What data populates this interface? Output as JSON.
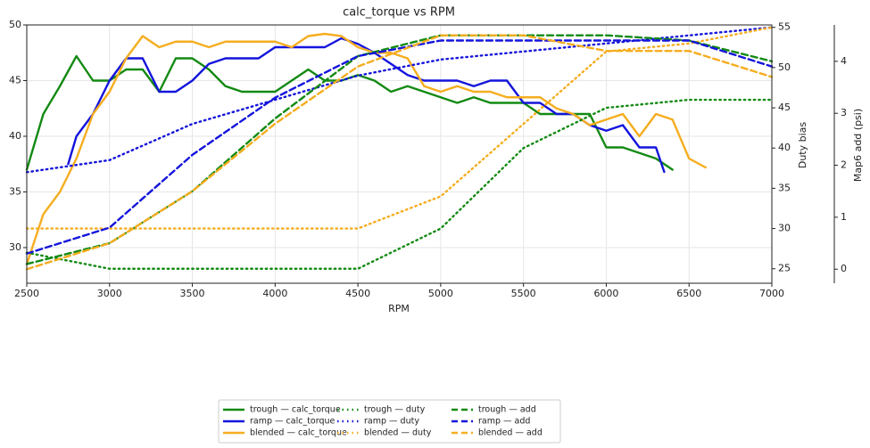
{
  "chart_data": {
    "type": "line",
    "title": "calc_torque vs RPM",
    "xlabel": "RPM",
    "y2label": "Duty bias",
    "y3label": "Map6 add (psi)",
    "xlim": [
      2500,
      7000
    ],
    "xticks": [
      2500,
      3000,
      3500,
      4000,
      4500,
      5000,
      5500,
      6000,
      6500,
      7000
    ],
    "ylim": [
      26.8,
      50
    ],
    "yticks": [
      30,
      35,
      40,
      45,
      50
    ],
    "y2lim": [
      23.2,
      55.3
    ],
    "y2ticks": [
      25,
      30,
      35,
      40,
      45,
      50,
      55
    ],
    "y3lim": [
      -0.27,
      4.7
    ],
    "y3ticks": [
      0,
      1,
      2,
      3,
      4
    ],
    "grid": true,
    "legend": "lower center",
    "series": [
      {
        "name": "trough — calc_torque",
        "color": "#138a13",
        "style": "solid",
        "axis": "y",
        "x": [
          2500,
          2600,
          2700,
          2800,
          2900,
          3000,
          3100,
          3200,
          3300,
          3400,
          3500,
          3600,
          3700,
          3800,
          3900,
          4000,
          4100,
          4200,
          4300,
          4400,
          4500,
          4600,
          4700,
          4800,
          4900,
          5000,
          5100,
          5200,
          5300,
          5400,
          5500,
          5600,
          5700,
          5800,
          5900,
          6000,
          6100,
          6200,
          6300,
          6400
        ],
        "values": [
          37,
          42,
          44.5,
          47.2,
          45,
          45,
          46,
          46,
          44,
          47,
          47,
          46,
          44.5,
          44,
          44,
          44,
          45,
          46,
          45,
          45,
          45.5,
          45,
          44,
          44.5,
          44,
          43.5,
          43,
          43.5,
          43,
          43,
          43,
          42,
          42,
          42,
          42,
          39,
          39,
          38.5,
          38,
          37
        ]
      },
      {
        "name": "ramp — calc_torque",
        "color": "#1414dc",
        "style": "solid",
        "axis": "y",
        "x": [
          2750,
          2800,
          2900,
          3000,
          3100,
          3200,
          3300,
          3400,
          3500,
          3600,
          3700,
          3800,
          3900,
          4000,
          4100,
          4200,
          4300,
          4400,
          4500,
          4600,
          4700,
          4800,
          4900,
          5000,
          5100,
          5200,
          5300,
          5400,
          5500,
          5600,
          5700,
          5800,
          5900,
          6000,
          6100,
          6200,
          6300,
          6350
        ],
        "values": [
          37.5,
          40,
          42,
          45,
          47,
          47,
          44,
          44,
          45,
          46.5,
          47,
          47,
          47,
          48,
          48,
          48,
          48,
          48.8,
          48.3,
          47.5,
          46.5,
          45.5,
          45,
          45,
          45,
          44.5,
          45,
          45,
          43,
          43,
          42,
          42,
          41,
          40.5,
          41,
          39,
          39,
          36.8
        ]
      },
      {
        "name": "blended — calc_torque",
        "color": "#f5ad1f",
        "style": "solid",
        "axis": "y",
        "x": [
          2500,
          2600,
          2700,
          2800,
          2900,
          3000,
          3100,
          3200,
          3300,
          3400,
          3500,
          3600,
          3700,
          3800,
          3900,
          4000,
          4100,
          4200,
          4300,
          4400,
          4500,
          4600,
          4700,
          4800,
          4900,
          5000,
          5100,
          5200,
          5300,
          5400,
          5500,
          5600,
          5700,
          5800,
          5900,
          6000,
          6100,
          6200,
          6300,
          6400,
          6500,
          6600
        ],
        "values": [
          28.5,
          33,
          35,
          38,
          42,
          44,
          47,
          49,
          48,
          48.5,
          48.5,
          48,
          48.5,
          48.5,
          48.5,
          48.5,
          48,
          49,
          49.2,
          49,
          48,
          47.5,
          47.5,
          47,
          44.5,
          44,
          44.5,
          44,
          44,
          43.5,
          43.5,
          43.5,
          42.5,
          42,
          41,
          41.5,
          42,
          40,
          42,
          41.5,
          38,
          37.2
        ]
      },
      {
        "name": "trough — duty",
        "color": "#138a13",
        "style": "dotted",
        "axis": "y2",
        "x": [
          2500,
          2750,
          3000,
          3500,
          4000,
          4500,
          5000,
          5500,
          6000,
          6500,
          7000
        ],
        "values": [
          27,
          26,
          25,
          25,
          25,
          25,
          30,
          40,
          45,
          46,
          46
        ]
      },
      {
        "name": "ramp — duty",
        "color": "#1414dc",
        "style": "dotted",
        "axis": "y2",
        "x": [
          2500,
          3000,
          3500,
          4000,
          4500,
          5000,
          5500,
          6000,
          6500,
          7000
        ],
        "values": [
          37,
          38.5,
          43,
          46,
          49,
          51,
          52,
          53,
          54,
          55
        ]
      },
      {
        "name": "blended — duty",
        "color": "#f5ad1f",
        "style": "dotted",
        "axis": "y2",
        "x": [
          2500,
          3000,
          3500,
          4000,
          4500,
          5000,
          5500,
          6000,
          6500,
          7000
        ],
        "values": [
          30,
          30,
          30,
          30,
          30,
          34,
          43,
          52,
          53,
          55
        ]
      },
      {
        "name": "trough — add",
        "color": "#138a13",
        "style": "dashed",
        "axis": "y3",
        "x": [
          2500,
          3000,
          3500,
          4000,
          4500,
          5000,
          5500,
          6000,
          6500,
          7000
        ],
        "values": [
          0.1,
          0.5,
          1.5,
          2.9,
          4.1,
          4.5,
          4.5,
          4.5,
          4.4,
          4.0
        ]
      },
      {
        "name": "ramp — add",
        "color": "#1414dc",
        "style": "dashed",
        "axis": "y3",
        "x": [
          2500,
          3000,
          3500,
          4000,
          4500,
          5000,
          5500,
          6000,
          6500,
          7000
        ],
        "values": [
          0.3,
          0.8,
          2.2,
          3.3,
          4.1,
          4.4,
          4.4,
          4.4,
          4.4,
          3.9
        ]
      },
      {
        "name": "blended — add",
        "color": "#f5ad1f",
        "style": "dashed",
        "axis": "y3",
        "x": [
          2500,
          3000,
          3500,
          4000,
          4500,
          5000,
          5500,
          6000,
          6500,
          7000
        ],
        "values": [
          0,
          0.5,
          1.5,
          2.8,
          3.9,
          4.5,
          4.5,
          4.2,
          4.2,
          3.7
        ]
      }
    ]
  }
}
